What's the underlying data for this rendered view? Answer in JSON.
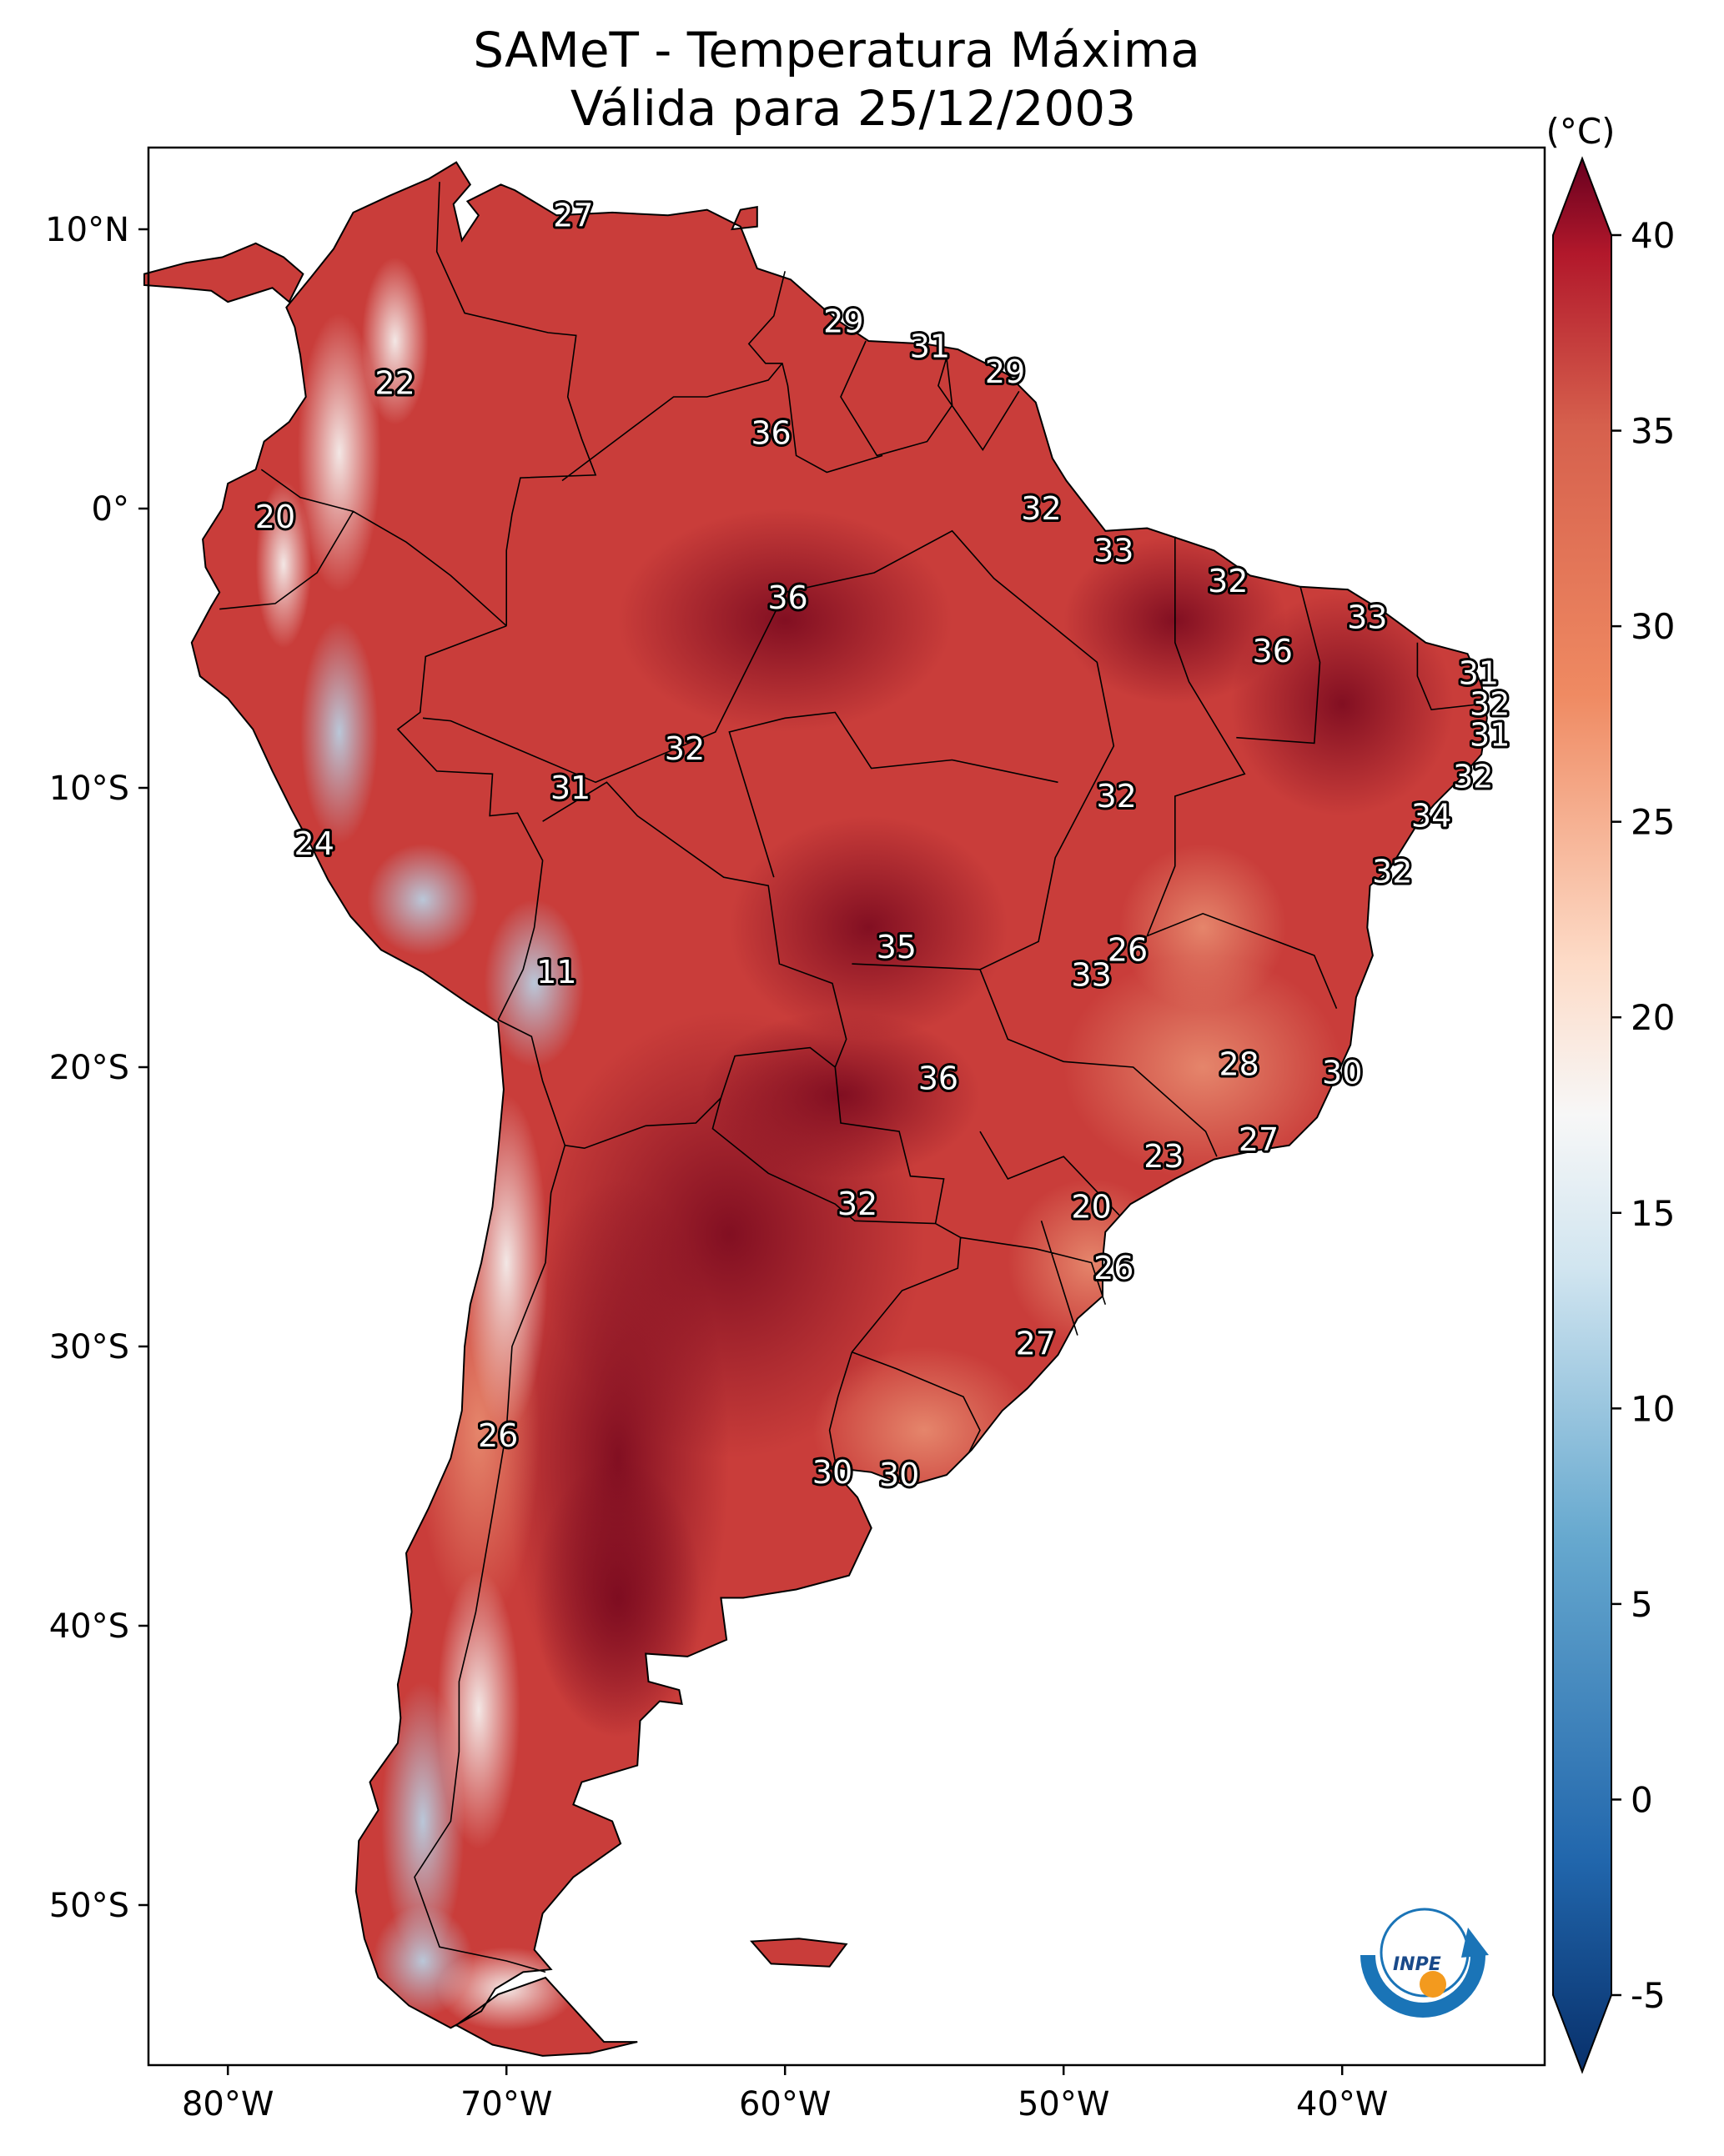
{
  "title_line1": "SAMeT - Temperatura Máxima",
  "title_line2": "Válida para 25/12/2003",
  "colorbar": {
    "unit": "(°C)",
    "min": -5,
    "max": 40,
    "ticks": [
      "40",
      "35",
      "30",
      "25",
      "20",
      "15",
      "10",
      "5",
      "0",
      "-5"
    ],
    "extend": "both",
    "colormap": "RdBu_r"
  },
  "axes": {
    "lon_ticks": [
      "80°W",
      "70°W",
      "60°W",
      "50°W",
      "40°W"
    ],
    "lat_ticks": [
      "10°N",
      "0°",
      "10°S",
      "20°S",
      "30°S",
      "40°S",
      "50°S"
    ],
    "lon_range": [
      -83,
      -33
    ],
    "lat_range": [
      -56,
      13
    ]
  },
  "logo_text": "INPE",
  "labels": [
    {
      "text": "27",
      "lon": -67.6,
      "lat": 10.5
    },
    {
      "text": "29",
      "lon": -57.9,
      "lat": 6.7
    },
    {
      "text": "31",
      "lon": -54.8,
      "lat": 5.8
    },
    {
      "text": "29",
      "lon": -52.1,
      "lat": 4.9
    },
    {
      "text": "22",
      "lon": -74.0,
      "lat": 4.5
    },
    {
      "text": "36",
      "lon": -60.5,
      "lat": 2.7
    },
    {
      "text": "32",
      "lon": -50.8,
      "lat": 0.0
    },
    {
      "text": "20",
      "lon": -78.3,
      "lat": -0.3
    },
    {
      "text": "33",
      "lon": -48.2,
      "lat": -1.5
    },
    {
      "text": "32",
      "lon": -44.1,
      "lat": -2.6
    },
    {
      "text": "36",
      "lon": -59.9,
      "lat": -3.2
    },
    {
      "text": "33",
      "lon": -39.1,
      "lat": -3.9
    },
    {
      "text": "36",
      "lon": -42.5,
      "lat": -5.1
    },
    {
      "text": "31",
      "lon": -35.1,
      "lat": -5.9
    },
    {
      "text": "32",
      "lon": -34.7,
      "lat": -7.0
    },
    {
      "text": "31",
      "lon": -34.7,
      "lat": -8.1
    },
    {
      "text": "32",
      "lon": -63.6,
      "lat": -8.6
    },
    {
      "text": "31",
      "lon": -67.7,
      "lat": -10.0
    },
    {
      "text": "32",
      "lon": -48.1,
      "lat": -10.3
    },
    {
      "text": "32",
      "lon": -35.3,
      "lat": -9.6
    },
    {
      "text": "34",
      "lon": -36.8,
      "lat": -11.0
    },
    {
      "text": "24",
      "lon": -76.9,
      "lat": -12.0
    },
    {
      "text": "32",
      "lon": -38.2,
      "lat": -13.0
    },
    {
      "text": "35",
      "lon": -56.0,
      "lat": -15.7
    },
    {
      "text": "26",
      "lon": -47.7,
      "lat": -15.8
    },
    {
      "text": "33",
      "lon": -49.0,
      "lat": -16.7
    },
    {
      "text": "11",
      "lon": -68.2,
      "lat": -16.6
    },
    {
      "text": "36",
      "lon": -54.5,
      "lat": -20.4
    },
    {
      "text": "28",
      "lon": -43.7,
      "lat": -19.9
    },
    {
      "text": "30",
      "lon": -40.0,
      "lat": -20.2
    },
    {
      "text": "27",
      "lon": -43.0,
      "lat": -22.6
    },
    {
      "text": "23",
      "lon": -46.4,
      "lat": -23.2
    },
    {
      "text": "32",
      "lon": -57.4,
      "lat": -24.9
    },
    {
      "text": "20",
      "lon": -49.0,
      "lat": -25.0
    },
    {
      "text": "26",
      "lon": -48.2,
      "lat": -27.2
    },
    {
      "text": "27",
      "lon": -51.0,
      "lat": -29.9
    },
    {
      "text": "26",
      "lon": -70.3,
      "lat": -33.2
    },
    {
      "text": "30",
      "lon": -58.3,
      "lat": -34.5
    },
    {
      "text": "30",
      "lon": -55.9,
      "lat": -34.6
    }
  ]
}
